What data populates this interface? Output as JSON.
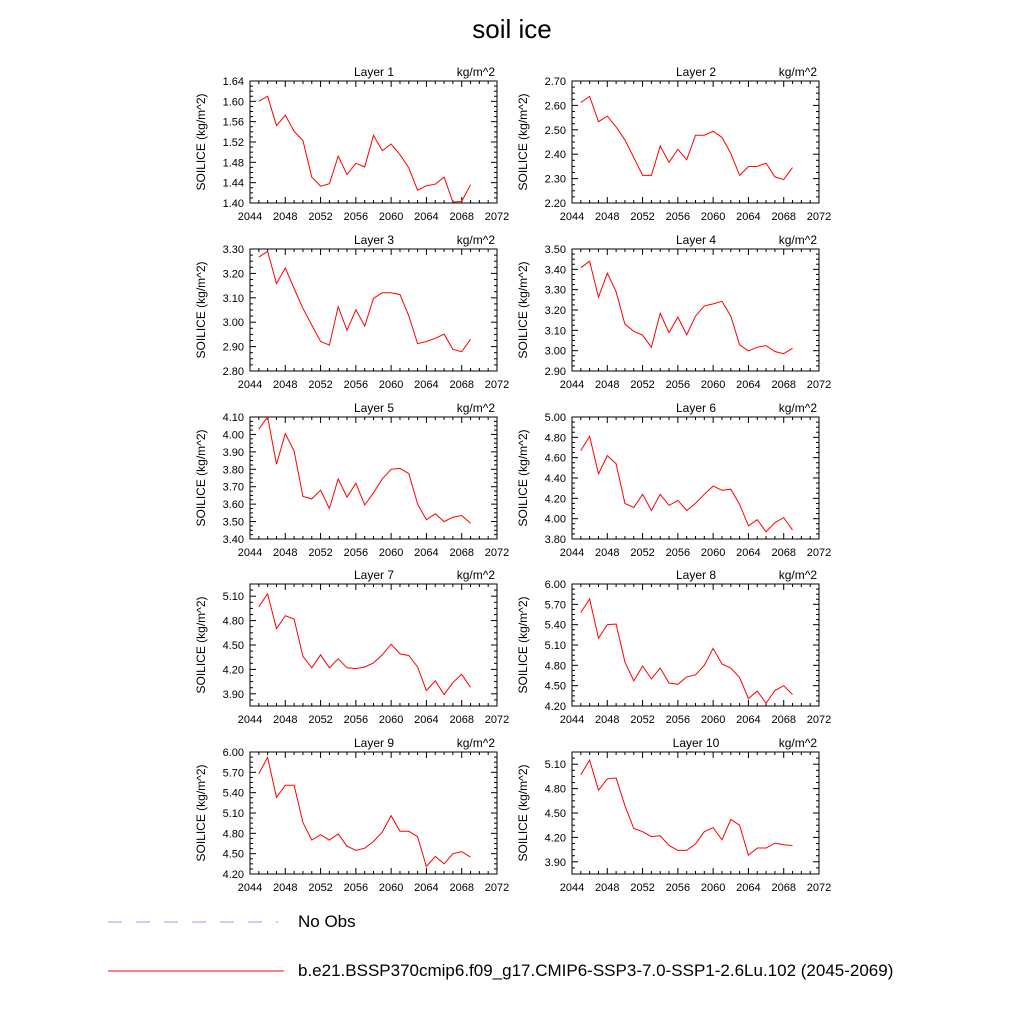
{
  "title": "soil ice",
  "colors": {
    "series": "#ff0000",
    "obs": "#9999ff",
    "axis": "#000000"
  },
  "legend": [
    {
      "label": "No Obs",
      "style": "dashed",
      "color": "#9999ff"
    },
    {
      "label": "b.e21.BSSP370cmip6.f09_g17.CMIP6-SSP3-7.0-SSP1-2.6Lu.102 (2045-2069)",
      "style": "solid",
      "color": "#ff0000"
    }
  ],
  "chart_data": [
    {
      "type": "line",
      "title": "Layer 1",
      "units": "kg/m^2",
      "ylabel": "SOILICE  (kg/m^2)",
      "xlim": [
        2044,
        2072
      ],
      "ylim": [
        1.4,
        1.64
      ],
      "xticks": [
        "2044",
        "2048",
        "2052",
        "2056",
        "2060",
        "2064",
        "2068",
        "2072"
      ],
      "yticks": [
        "1.40",
        "1.44",
        "1.48",
        "1.52",
        "1.56",
        "1.60",
        "1.64"
      ],
      "x": [
        2045,
        2046,
        2047,
        2048,
        2049,
        2050,
        2051,
        2052,
        2053,
        2054,
        2055,
        2056,
        2057,
        2058,
        2059,
        2060,
        2061,
        2062,
        2063,
        2064,
        2065,
        2066,
        2067,
        2068,
        2069
      ],
      "values": [
        1.6,
        1.61,
        1.552,
        1.573,
        1.541,
        1.523,
        1.451,
        1.433,
        1.438,
        1.492,
        1.456,
        1.478,
        1.471,
        1.533,
        1.503,
        1.516,
        1.495,
        1.469,
        1.425,
        1.434,
        1.437,
        1.451,
        1.402,
        1.403,
        1.436
      ]
    },
    {
      "type": "line",
      "title": "Layer 2",
      "units": "kg/m^2",
      "ylabel": "SOILICE  (kg/m^2)",
      "xlim": [
        2044,
        2072
      ],
      "ylim": [
        2.2,
        2.7
      ],
      "xticks": [
        "2044",
        "2048",
        "2052",
        "2056",
        "2060",
        "2064",
        "2068",
        "2072"
      ],
      "yticks": [
        "2.20",
        "2.30",
        "2.40",
        "2.50",
        "2.60",
        "2.70"
      ],
      "x": [
        2045,
        2046,
        2047,
        2048,
        2049,
        2050,
        2051,
        2052,
        2053,
        2054,
        2055,
        2056,
        2057,
        2058,
        2059,
        2060,
        2061,
        2062,
        2063,
        2064,
        2065,
        2066,
        2067,
        2068,
        2069
      ],
      "values": [
        2.612,
        2.637,
        2.533,
        2.556,
        2.512,
        2.459,
        2.386,
        2.313,
        2.313,
        2.433,
        2.367,
        2.42,
        2.377,
        2.478,
        2.478,
        2.494,
        2.469,
        2.403,
        2.313,
        2.349,
        2.35,
        2.363,
        2.307,
        2.296,
        2.345
      ]
    },
    {
      "type": "line",
      "title": "Layer 3",
      "units": "kg/m^2",
      "ylabel": "SOILICE  (kg/m^2)",
      "xlim": [
        2044,
        2072
      ],
      "ylim": [
        2.8,
        3.3
      ],
      "xticks": [
        "2044",
        "2048",
        "2052",
        "2056",
        "2060",
        "2064",
        "2068",
        "2072"
      ],
      "yticks": [
        "2.80",
        "2.90",
        "3.00",
        "3.10",
        "3.20",
        "3.30"
      ],
      "x": [
        2045,
        2046,
        2047,
        2048,
        2049,
        2050,
        2051,
        2052,
        2053,
        2054,
        2055,
        2056,
        2057,
        2058,
        2059,
        2060,
        2061,
        2062,
        2063,
        2064,
        2065,
        2066,
        2067,
        2068,
        2069
      ],
      "values": [
        3.267,
        3.29,
        3.158,
        3.222,
        3.138,
        3.057,
        2.988,
        2.921,
        2.906,
        3.064,
        2.967,
        3.051,
        2.984,
        3.098,
        3.121,
        3.121,
        3.113,
        3.026,
        2.912,
        2.921,
        2.934,
        2.951,
        2.889,
        2.879,
        2.93
      ]
    },
    {
      "type": "line",
      "title": "Layer 4",
      "units": "kg/m^2",
      "ylabel": "SOILICE  (kg/m^2)",
      "xlim": [
        2044,
        2072
      ],
      "ylim": [
        2.9,
        3.5
      ],
      "xticks": [
        "2044",
        "2048",
        "2052",
        "2056",
        "2060",
        "2064",
        "2068",
        "2072"
      ],
      "yticks": [
        "2.90",
        "3.00",
        "3.10",
        "3.20",
        "3.30",
        "3.40",
        "3.50"
      ],
      "x": [
        2045,
        2046,
        2047,
        2048,
        2049,
        2050,
        2051,
        2052,
        2053,
        2054,
        2055,
        2056,
        2057,
        2058,
        2059,
        2060,
        2061,
        2062,
        2063,
        2064,
        2065,
        2066,
        2067,
        2068,
        2069
      ],
      "values": [
        3.408,
        3.44,
        3.263,
        3.381,
        3.29,
        3.13,
        3.095,
        3.076,
        3.017,
        3.184,
        3.089,
        3.165,
        3.078,
        3.17,
        3.22,
        3.23,
        3.243,
        3.17,
        3.029,
        2.999,
        3.017,
        3.025,
        2.996,
        2.985,
        3.012
      ]
    },
    {
      "type": "line",
      "title": "Layer 5",
      "units": "kg/m^2",
      "ylabel": "SOILICE  (kg/m^2)",
      "xlim": [
        2044,
        2072
      ],
      "ylim": [
        3.4,
        4.1
      ],
      "xticks": [
        "2044",
        "2048",
        "2052",
        "2056",
        "2060",
        "2064",
        "2068",
        "2072"
      ],
      "yticks": [
        "3.40",
        "3.50",
        "3.60",
        "3.70",
        "3.80",
        "3.90",
        "4.00",
        "4.10"
      ],
      "x": [
        2045,
        2046,
        2047,
        2048,
        2049,
        2050,
        2051,
        2052,
        2053,
        2054,
        2055,
        2056,
        2057,
        2058,
        2059,
        2060,
        2061,
        2062,
        2063,
        2064,
        2065,
        2066,
        2067,
        2068,
        2069
      ],
      "values": [
        4.03,
        4.1,
        3.83,
        4.005,
        3.905,
        3.645,
        3.63,
        3.68,
        3.575,
        3.745,
        3.64,
        3.72,
        3.595,
        3.665,
        3.745,
        3.8,
        3.805,
        3.775,
        3.6,
        3.51,
        3.545,
        3.5,
        3.525,
        3.535,
        3.49
      ]
    },
    {
      "type": "line",
      "title": "Layer 6",
      "units": "kg/m^2",
      "ylabel": "SOILICE  (kg/m^2)",
      "xlim": [
        2044,
        2072
      ],
      "ylim": [
        3.8,
        5.0
      ],
      "xticks": [
        "2044",
        "2048",
        "2052",
        "2056",
        "2060",
        "2064",
        "2068",
        "2072"
      ],
      "yticks": [
        "3.80",
        "4.00",
        "4.20",
        "4.40",
        "4.60",
        "4.80",
        "5.00"
      ],
      "x": [
        2045,
        2046,
        2047,
        2048,
        2049,
        2050,
        2051,
        2052,
        2053,
        2054,
        2055,
        2056,
        2057,
        2058,
        2059,
        2060,
        2061,
        2062,
        2063,
        2064,
        2065,
        2066,
        2067,
        2068,
        2069
      ],
      "values": [
        4.67,
        4.81,
        4.44,
        4.62,
        4.54,
        4.15,
        4.11,
        4.24,
        4.08,
        4.24,
        4.13,
        4.18,
        4.08,
        4.15,
        4.24,
        4.32,
        4.28,
        4.29,
        4.14,
        3.93,
        3.99,
        3.87,
        3.96,
        4.01,
        3.89
      ]
    },
    {
      "type": "line",
      "title": "Layer 7",
      "units": "kg/m^2",
      "ylabel": "SOILICE  (kg/m^2)",
      "xlim": [
        2044,
        2072
      ],
      "ylim": [
        3.75,
        5.25
      ],
      "xticks": [
        "2044",
        "2048",
        "2052",
        "2056",
        "2060",
        "2064",
        "2068",
        "2072"
      ],
      "yticks": [
        "3.90",
        "4.20",
        "4.50",
        "4.80",
        "5.10"
      ],
      "x": [
        2045,
        2046,
        2047,
        2048,
        2049,
        2050,
        2051,
        2052,
        2053,
        2054,
        2055,
        2056,
        2057,
        2058,
        2059,
        2060,
        2061,
        2062,
        2063,
        2064,
        2065,
        2066,
        2067,
        2068,
        2069
      ],
      "values": [
        4.97,
        5.13,
        4.7,
        4.86,
        4.82,
        4.36,
        4.22,
        4.38,
        4.22,
        4.33,
        4.22,
        4.21,
        4.23,
        4.28,
        4.38,
        4.51,
        4.39,
        4.37,
        4.23,
        3.94,
        4.06,
        3.89,
        4.04,
        4.14,
        3.98
      ]
    },
    {
      "type": "line",
      "title": "Layer 8",
      "units": "kg/m^2",
      "ylabel": "SOILICE  (kg/m^2)",
      "xlim": [
        2044,
        2072
      ],
      "ylim": [
        4.2,
        6.0
      ],
      "xticks": [
        "2044",
        "2048",
        "2052",
        "2056",
        "2060",
        "2064",
        "2068",
        "2072"
      ],
      "yticks": [
        "4.20",
        "4.50",
        "4.80",
        "5.10",
        "5.40",
        "5.70",
        "6.00"
      ],
      "x": [
        2045,
        2046,
        2047,
        2048,
        2049,
        2050,
        2051,
        2052,
        2053,
        2054,
        2055,
        2056,
        2057,
        2058,
        2059,
        2060,
        2061,
        2062,
        2063,
        2064,
        2065,
        2066,
        2067,
        2068,
        2069
      ],
      "values": [
        5.58,
        5.78,
        5.2,
        5.4,
        5.41,
        4.85,
        4.57,
        4.79,
        4.6,
        4.76,
        4.54,
        4.52,
        4.63,
        4.66,
        4.8,
        5.05,
        4.82,
        4.76,
        4.62,
        4.31,
        4.42,
        4.24,
        4.43,
        4.5,
        4.37
      ]
    },
    {
      "type": "line",
      "title": "Layer 9",
      "units": "kg/m^2",
      "ylabel": "SOILICE  (kg/m^2)",
      "xlim": [
        2044,
        2072
      ],
      "ylim": [
        4.2,
        6.0
      ],
      "xticks": [
        "2044",
        "2048",
        "2052",
        "2056",
        "2060",
        "2064",
        "2068",
        "2072"
      ],
      "yticks": [
        "4.20",
        "4.50",
        "4.80",
        "5.10",
        "5.40",
        "5.70",
        "6.00"
      ],
      "x": [
        2045,
        2046,
        2047,
        2048,
        2049,
        2050,
        2051,
        2052,
        2053,
        2054,
        2055,
        2056,
        2057,
        2058,
        2059,
        2060,
        2061,
        2062,
        2063,
        2064,
        2065,
        2066,
        2067,
        2068,
        2069
      ],
      "values": [
        5.68,
        5.92,
        5.33,
        5.51,
        5.51,
        4.96,
        4.7,
        4.78,
        4.7,
        4.79,
        4.61,
        4.55,
        4.58,
        4.68,
        4.82,
        5.06,
        4.83,
        4.83,
        4.75,
        4.31,
        4.46,
        4.35,
        4.5,
        4.53,
        4.45
      ]
    },
    {
      "type": "line",
      "title": "Layer 10",
      "units": "kg/m^2",
      "ylabel": "SOILICE  (kg/m^2)",
      "xlim": [
        2044,
        2072
      ],
      "ylim": [
        3.75,
        5.25
      ],
      "xticks": [
        "2044",
        "2048",
        "2052",
        "2056",
        "2060",
        "2064",
        "2068",
        "2072"
      ],
      "yticks": [
        "3.90",
        "4.20",
        "4.50",
        "4.80",
        "5.10"
      ],
      "x": [
        2045,
        2046,
        2047,
        2048,
        2049,
        2050,
        2051,
        2052,
        2053,
        2054,
        2055,
        2056,
        2057,
        2058,
        2059,
        2060,
        2061,
        2062,
        2063,
        2064,
        2065,
        2066,
        2067,
        2068,
        2069
      ],
      "values": [
        4.97,
        5.15,
        4.78,
        4.92,
        4.93,
        4.59,
        4.31,
        4.27,
        4.21,
        4.22,
        4.1,
        4.04,
        4.04,
        4.12,
        4.27,
        4.32,
        4.17,
        4.42,
        4.35,
        3.98,
        4.07,
        4.07,
        4.13,
        4.11,
        4.1
      ]
    }
  ]
}
